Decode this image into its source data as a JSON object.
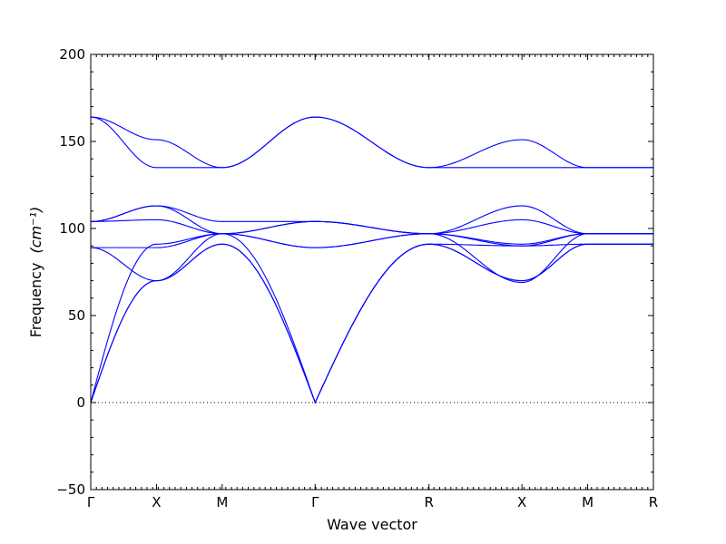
{
  "chart_data": {
    "type": "line",
    "title": "",
    "xlabel": "Wave vector",
    "ylabel": "Frequency",
    "ylabel_unit": "(cm⁻¹)",
    "ylim": [
      -50,
      200
    ],
    "yticks": [
      -50,
      0,
      50,
      100,
      150,
      200
    ],
    "yticklabels": [
      "−50",
      "0",
      "50",
      "100",
      "150",
      "200"
    ],
    "high_symmetry_points": [
      {
        "label": "Γ",
        "x": 0
      },
      {
        "label": "X",
        "x": 0.5
      },
      {
        "label": "M",
        "x": 1.0
      },
      {
        "label": "Γ",
        "x": 1.7071
      },
      {
        "label": "R",
        "x": 2.5731
      },
      {
        "label": "X",
        "x": 3.2802
      },
      {
        "label": "M",
        "x": 3.7802
      },
      {
        "label": "R",
        "x": 4.2802
      }
    ],
    "zero_line": {
      "y": 0,
      "style": "dotted"
    },
    "line_color": "#0000ff",
    "series": [
      {
        "values": [
          [
            0,
            0
          ],
          [
            0.5,
            70
          ],
          [
            1.0,
            91
          ],
          [
            1.7071,
            0
          ],
          [
            2.5731,
            91
          ],
          [
            3.2802,
            70
          ],
          [
            3.7802,
            91
          ],
          [
            4.2802,
            91
          ]
        ]
      },
      {
        "values": [
          [
            0,
            0
          ],
          [
            0.5,
            70
          ],
          [
            1.0,
            91
          ],
          [
            1.7071,
            0
          ],
          [
            2.5731,
            91
          ],
          [
            3.2802,
            70
          ],
          [
            3.7802,
            91
          ],
          [
            4.2802,
            91
          ]
        ]
      },
      {
        "values": [
          [
            0,
            0
          ],
          [
            0.5,
            91
          ],
          [
            1.0,
            97
          ],
          [
            1.7071,
            0
          ],
          [
            2.5731,
            91
          ],
          [
            3.2802,
            90
          ],
          [
            3.7802,
            91
          ],
          [
            4.2802,
            91
          ]
        ]
      },
      {
        "values": [
          [
            0,
            89
          ],
          [
            0.5,
            89
          ],
          [
            1.0,
            97
          ],
          [
            1.7071,
            89
          ],
          [
            2.5731,
            97
          ],
          [
            3.2802,
            90
          ],
          [
            3.7802,
            97
          ],
          [
            4.2802,
            97
          ]
        ]
      },
      {
        "values": [
          [
            0,
            89
          ],
          [
            0.5,
            70
          ],
          [
            1.0,
            97
          ],
          [
            1.7071,
            89
          ],
          [
            2.5731,
            97
          ],
          [
            3.2802,
            69
          ],
          [
            3.7802,
            97
          ],
          [
            4.2802,
            97
          ]
        ]
      },
      {
        "values": [
          [
            0,
            104
          ],
          [
            0.5,
            113
          ],
          [
            1.0,
            97
          ],
          [
            1.7071,
            104
          ],
          [
            2.5731,
            97
          ],
          [
            3.2802,
            113
          ],
          [
            3.7802,
            97
          ],
          [
            4.2802,
            97
          ]
        ]
      },
      {
        "values": [
          [
            0,
            104
          ],
          [
            0.5,
            105
          ],
          [
            1.0,
            97
          ],
          [
            1.7071,
            104
          ],
          [
            2.5731,
            97
          ],
          [
            3.2802,
            105
          ],
          [
            3.7802,
            97
          ],
          [
            4.2802,
            97
          ]
        ]
      },
      {
        "values": [
          [
            0,
            104
          ],
          [
            0.5,
            113
          ],
          [
            1.0,
            104
          ],
          [
            1.7071,
            104
          ],
          [
            2.5731,
            97
          ],
          [
            3.2802,
            91
          ],
          [
            3.7802,
            97
          ],
          [
            4.2802,
            97
          ]
        ]
      },
      {
        "values": [
          [
            0,
            164
          ],
          [
            0.5,
            135
          ],
          [
            1.0,
            135
          ],
          [
            1.7071,
            164
          ],
          [
            2.5731,
            135
          ],
          [
            3.2802,
            135
          ],
          [
            3.7802,
            135
          ],
          [
            4.2802,
            135
          ]
        ]
      },
      {
        "values": [
          [
            0,
            164
          ],
          [
            0.5,
            151
          ],
          [
            1.0,
            135
          ],
          [
            1.7071,
            164
          ],
          [
            2.5731,
            135
          ],
          [
            3.2802,
            151
          ],
          [
            3.7802,
            135
          ],
          [
            4.2802,
            135
          ]
        ]
      }
    ]
  }
}
